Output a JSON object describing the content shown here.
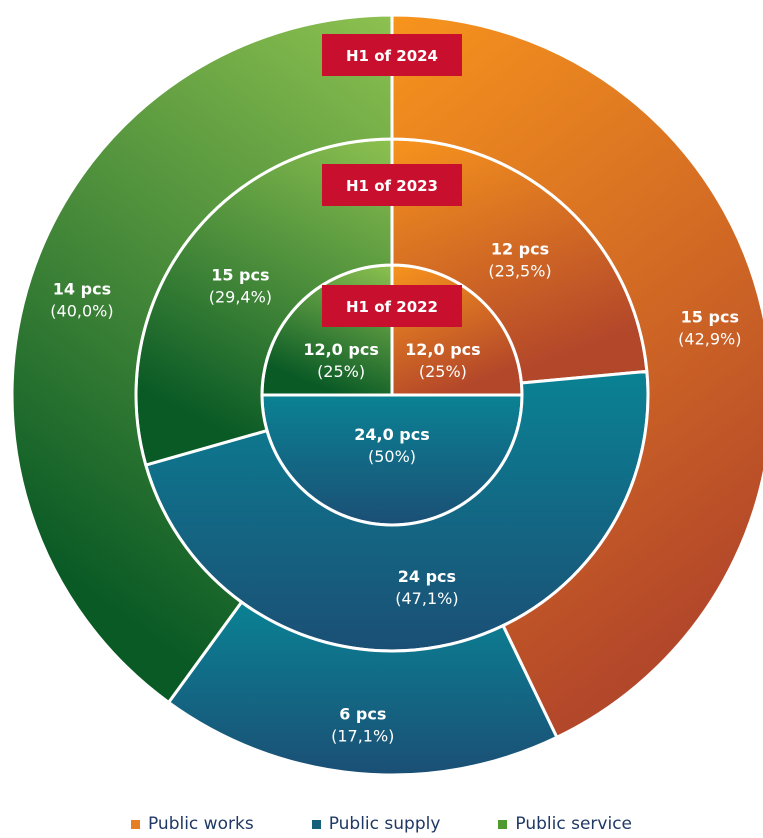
{
  "chart_data": {
    "type": "pie",
    "subtype": "multi-level donut",
    "colors": {
      "public_works": [
        "#f7941d",
        "#b3472a"
      ],
      "public_supply": [
        "#0a8294",
        "#1b4f75"
      ],
      "public_service": [
        "#8dc150",
        "#0a5a26"
      ]
    },
    "rings": [
      {
        "name": "H1 of 2022",
        "slices": [
          {
            "category": "Public works",
            "value": 12.0,
            "label": "12,0 pcs",
            "pct": "(25%)"
          },
          {
            "category": "Public supply",
            "value": 24.0,
            "label": "24,0 pcs",
            "pct": "(50%)"
          },
          {
            "category": "Public service",
            "value": 12.0,
            "label": "12,0 pcs",
            "pct": "(25%)"
          }
        ]
      },
      {
        "name": "H1 of 2023",
        "slices": [
          {
            "category": "Public works",
            "value": 12,
            "label": "12 pcs",
            "pct": "(23,5%)"
          },
          {
            "category": "Public supply",
            "value": 24,
            "label": "24 pcs",
            "pct": "(47,1%)"
          },
          {
            "category": "Public service",
            "value": 15,
            "label": "15 pcs",
            "pct": "(29,4%)"
          }
        ]
      },
      {
        "name": "H1 of 2024",
        "slices": [
          {
            "category": "Public works",
            "value": 15,
            "label": "15 pcs",
            "pct": "(42,9%)"
          },
          {
            "category": "Public supply",
            "value": 6,
            "label": "6 pcs",
            "pct": "(17,1%)"
          },
          {
            "category": "Public service",
            "value": 14,
            "label": "14 pcs",
            "pct": "(40,0%)"
          }
        ]
      }
    ],
    "legend": {
      "position": "bottom",
      "items": [
        {
          "label": "Public works",
          "color": "#e67e22"
        },
        {
          "label": "Public supply",
          "color": "#17607a"
        },
        {
          "label": "Public service",
          "color": "#4e9a2e"
        }
      ]
    }
  }
}
